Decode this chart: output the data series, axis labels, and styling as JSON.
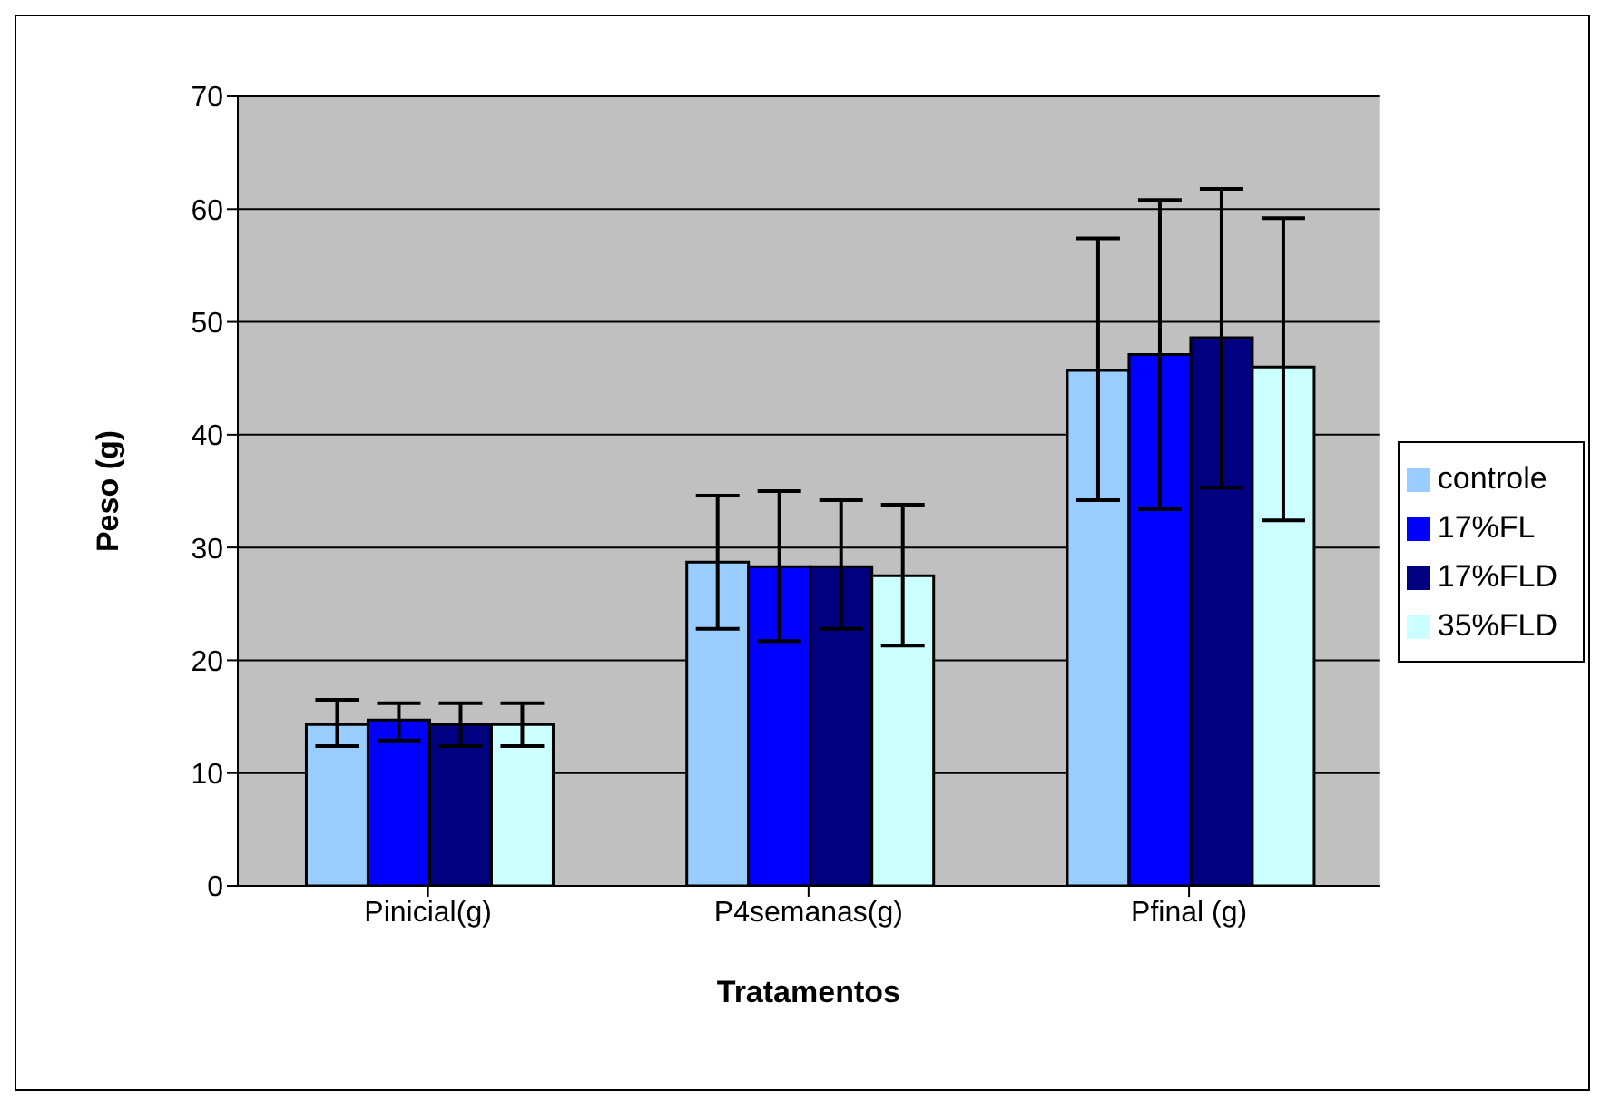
{
  "chart_data": {
    "type": "bar",
    "xlabel": "Tratamentos",
    "ylabel": "Peso (g)",
    "categories": [
      "Pinicial(g)",
      "P4semanas(g)",
      "Pfinal (g)"
    ],
    "series": [
      {
        "name": "controle",
        "color": "#99ccff",
        "values": [
          14.3,
          28.7,
          45.7
        ],
        "errors": [
          [
            12.4,
            16.5
          ],
          [
            22.8,
            34.6
          ],
          [
            34.2,
            57.4
          ]
        ]
      },
      {
        "name": "17%FL",
        "color": "#0000ff",
        "values": [
          14.7,
          28.3,
          47.1
        ],
        "errors": [
          [
            12.9,
            16.2
          ],
          [
            21.7,
            35.0
          ],
          [
            33.4,
            60.8
          ]
        ]
      },
      {
        "name": "17%FLD",
        "color": "#000080",
        "values": [
          14.3,
          28.3,
          48.6
        ],
        "errors": [
          [
            12.4,
            16.2
          ],
          [
            22.8,
            34.2
          ],
          [
            35.3,
            61.8
          ]
        ]
      },
      {
        "name": "35%FLD",
        "color": "#ccffff",
        "values": [
          14.3,
          27.5,
          46.0
        ],
        "errors": [
          [
            12.4,
            16.2
          ],
          [
            21.3,
            33.8
          ],
          [
            32.4,
            59.2
          ]
        ]
      }
    ],
    "ylim": [
      0,
      70
    ],
    "yticks": [
      0,
      10,
      20,
      30,
      40,
      50,
      60,
      70
    ],
    "grid": "y",
    "legend": "right"
  }
}
